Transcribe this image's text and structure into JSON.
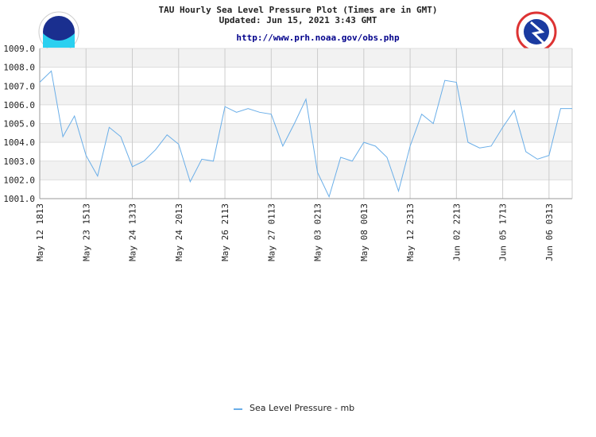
{
  "chart_data": {
    "type": "line",
    "title": "TAU Hourly Sea Level Pressure Plot (Times are in GMT)",
    "subtitle": "Updated: Jun 15, 2021 3:43 GMT",
    "source_url": "http://www.prh.noaa.gov/obs.php",
    "categories": [
      "May 12 1813",
      null,
      null,
      null,
      "May 23 1513",
      null,
      null,
      null,
      "May 24 1313",
      null,
      null,
      null,
      "May 24 2013",
      null,
      null,
      null,
      "May 26 2113",
      null,
      null,
      null,
      "May 27 0113",
      null,
      null,
      null,
      "May 03 0213",
      null,
      null,
      null,
      "May 08 0013",
      null,
      null,
      null,
      "May 12 2313",
      null,
      null,
      null,
      "Jun 02 2213",
      null,
      null,
      null,
      "Jun 05 1713",
      null,
      null,
      null,
      "Jun 06 0313",
      null,
      null
    ],
    "series": [
      {
        "name": "Sea Level Pressure - mb",
        "color": "#6aaee8",
        "values": [
          1007.2,
          1007.8,
          1004.3,
          1005.4,
          1003.3,
          1002.2,
          1004.8,
          1004.3,
          1002.7,
          1003.0,
          1003.6,
          1004.4,
          1003.9,
          1001.9,
          1003.1,
          1003.0,
          1005.9,
          1005.6,
          1005.8,
          1005.6,
          1005.5,
          1003.8,
          1005.0,
          1006.3,
          1002.4,
          1001.1,
          1003.2,
          1003.0,
          1004.0,
          1003.8,
          1003.2,
          1001.4,
          1003.8,
          1005.5,
          1005.0,
          1007.3,
          1007.2,
          1004.0,
          1003.7,
          1003.8,
          1004.8,
          1005.7,
          1003.5,
          1003.1,
          1003.3,
          1005.8,
          1005.8
        ]
      }
    ],
    "ylim": [
      1001,
      1009
    ],
    "yticks": [
      {
        "value": 1001,
        "label": "1001.0"
      },
      {
        "value": 1002,
        "label": "1002.0"
      },
      {
        "value": 1003,
        "label": "1003.0"
      },
      {
        "value": 1004,
        "label": "1004.0"
      },
      {
        "value": 1005,
        "label": "1005.0"
      },
      {
        "value": 1006,
        "label": "1006.0"
      },
      {
        "value": 1007,
        "label": "1007.0"
      },
      {
        "value": 1008,
        "label": "1008.0"
      },
      {
        "value": 1009,
        "label": "1009.0"
      }
    ],
    "grid": true
  }
}
